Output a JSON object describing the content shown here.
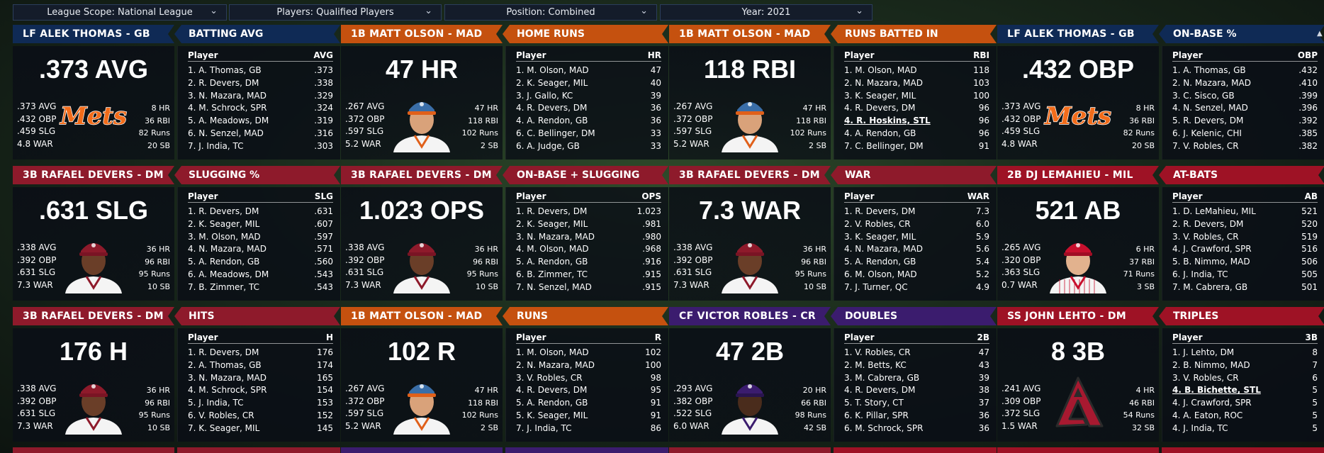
{
  "filters": [
    {
      "label": "League Scope: National League"
    },
    {
      "label": "Players: Qualified Players"
    },
    {
      "label": "Position: Combined"
    },
    {
      "label": "Year: 2021"
    }
  ],
  "panels": [
    {
      "player_title": "LF ALEK THOMAS - GB",
      "player_color": "navy",
      "big_stat": ".373 AVG",
      "left_stats": [
        ".373 AVG",
        ".432 OBP",
        ".459 SLG",
        "4.8 WAR"
      ],
      "right_stats": [
        "8 HR",
        "36 RBI",
        "82 Runs",
        "20 SB"
      ],
      "image": "mets-logo",
      "logo_text": "Mets",
      "leader_title": "BATTING AVG",
      "leader_color": "navy",
      "col_label": "Player",
      "col_stat": "AVG",
      "rows": [
        {
          "name": "1. A. Thomas, GB",
          "value": ".373"
        },
        {
          "name": "2. R. Devers, DM",
          "value": ".338"
        },
        {
          "name": "3. N. Mazara, MAD",
          "value": ".329"
        },
        {
          "name": "4. M. Schrock, SPR",
          "value": ".324"
        },
        {
          "name": "5. A. Meadows, DM",
          "value": ".319"
        },
        {
          "name": "6. N. Senzel, MAD",
          "value": ".316"
        },
        {
          "name": "7. J. India, TC",
          "value": ".303"
        }
      ]
    },
    {
      "player_title": "1B MATT OLSON - MAD",
      "player_color": "orange",
      "big_stat": "47 HR",
      "left_stats": [
        ".267 AVG",
        ".372 OBP",
        ".597 SLG",
        "5.2 WAR"
      ],
      "right_stats": [
        "47 HR",
        "118 RBI",
        "102 Runs",
        "2 SB"
      ],
      "image": "player-orange",
      "leader_title": "HOME RUNS",
      "leader_color": "orange",
      "col_label": "Player",
      "col_stat": "HR",
      "rows": [
        {
          "name": "1. M. Olson, MAD",
          "value": "47"
        },
        {
          "name": "2. K. Seager, MIL",
          "value": "40"
        },
        {
          "name": "3. J. Gallo, KC",
          "value": "39"
        },
        {
          "name": "4. R. Devers, DM",
          "value": "36"
        },
        {
          "name": "4. A. Rendon, GB",
          "value": "36"
        },
        {
          "name": "6. C. Bellinger, DM",
          "value": "33"
        },
        {
          "name": "6. A. Judge, GB",
          "value": "33"
        }
      ]
    },
    {
      "player_title": "1B MATT OLSON - MAD",
      "player_color": "orange",
      "big_stat": "118 RBI",
      "left_stats": [
        ".267 AVG",
        ".372 OBP",
        ".597 SLG",
        "5.2 WAR"
      ],
      "right_stats": [
        "47 HR",
        "118 RBI",
        "102 Runs",
        "2 SB"
      ],
      "image": "player-orange",
      "leader_title": "RUNS BATTED IN",
      "leader_color": "orange",
      "col_label": "Player",
      "col_stat": "RBI",
      "rows": [
        {
          "name": "1. M. Olson, MAD",
          "value": "118"
        },
        {
          "name": "2. N. Mazara, MAD",
          "value": "103"
        },
        {
          "name": "3. K. Seager, MIL",
          "value": "100"
        },
        {
          "name": "4. R. Devers, DM",
          "value": "96"
        },
        {
          "name": "4. R. Hoskins, STL",
          "value": "96",
          "highlight": true
        },
        {
          "name": "4. A. Rendon, GB",
          "value": "96"
        },
        {
          "name": "7. C. Bellinger, DM",
          "value": "91"
        }
      ]
    },
    {
      "player_title": "LF ALEK THOMAS - GB",
      "player_color": "navy",
      "big_stat": ".432 OBP",
      "left_stats": [
        ".373 AVG",
        ".432 OBP",
        ".459 SLG",
        "4.8 WAR"
      ],
      "right_stats": [
        "8 HR",
        "36 RBI",
        "82 Runs",
        "20 SB"
      ],
      "image": "mets-logo",
      "logo_text": "Mets",
      "leader_title": "ON-BASE %",
      "leader_color": "navy",
      "col_label": "Player",
      "col_stat": "OBP",
      "rows": [
        {
          "name": "1. A. Thomas, GB",
          "value": ".432"
        },
        {
          "name": "2. N. Mazara, MAD",
          "value": ".410"
        },
        {
          "name": "3. C. Sisco, GB",
          "value": ".399"
        },
        {
          "name": "4. N. Senzel, MAD",
          "value": ".396"
        },
        {
          "name": "5. R. Devers, DM",
          "value": ".392"
        },
        {
          "name": "6. J. Kelenic, CHI",
          "value": ".385"
        },
        {
          "name": "7. V. Robles, CR",
          "value": ".382"
        }
      ]
    },
    {
      "player_title": "3B RAFAEL DEVERS - DM",
      "player_color": "red",
      "big_stat": ".631 SLG",
      "left_stats": [
        ".338 AVG",
        ".392 OBP",
        ".631 SLG",
        "7.3 WAR"
      ],
      "right_stats": [
        "36 HR",
        "96 RBI",
        "95 Runs",
        "10 SB"
      ],
      "image": "player-red",
      "leader_title": "SLUGGING %",
      "leader_color": "red",
      "col_label": "Player",
      "col_stat": "SLG",
      "rows": [
        {
          "name": "1. R. Devers, DM",
          "value": ".631"
        },
        {
          "name": "2. K. Seager, MIL",
          "value": ".607"
        },
        {
          "name": "3. M. Olson, MAD",
          "value": ".597"
        },
        {
          "name": "4. N. Mazara, MAD",
          "value": ".571"
        },
        {
          "name": "5. A. Rendon, GB",
          "value": ".560"
        },
        {
          "name": "6. A. Meadows, DM",
          "value": ".543"
        },
        {
          "name": "7. B. Zimmer, TC",
          "value": ".543"
        }
      ]
    },
    {
      "player_title": "3B RAFAEL DEVERS - DM",
      "player_color": "red",
      "big_stat": "1.023 OPS",
      "left_stats": [
        ".338 AVG",
        ".392 OBP",
        ".631 SLG",
        "7.3 WAR"
      ],
      "right_stats": [
        "36 HR",
        "96 RBI",
        "95 Runs",
        "10 SB"
      ],
      "image": "player-red",
      "leader_title": "ON-BASE + SLUGGING",
      "leader_color": "red",
      "col_label": "Player",
      "col_stat": "OPS",
      "rows": [
        {
          "name": "1. R. Devers, DM",
          "value": "1.023"
        },
        {
          "name": "2. K. Seager, MIL",
          "value": ".981"
        },
        {
          "name": "3. N. Mazara, MAD",
          "value": ".980"
        },
        {
          "name": "4. M. Olson, MAD",
          "value": ".968"
        },
        {
          "name": "5. A. Rendon, GB",
          "value": ".916"
        },
        {
          "name": "6. B. Zimmer, TC",
          "value": ".915"
        },
        {
          "name": "7. N. Senzel, MAD",
          "value": ".915"
        }
      ]
    },
    {
      "player_title": "3B RAFAEL DEVERS - DM",
      "player_color": "red",
      "big_stat": "7.3 WAR",
      "left_stats": [
        ".338 AVG",
        ".392 OBP",
        ".631 SLG",
        "7.3 WAR"
      ],
      "right_stats": [
        "36 HR",
        "96 RBI",
        "95 Runs",
        "10 SB"
      ],
      "image": "player-red",
      "leader_title": "WAR",
      "leader_color": "red",
      "col_label": "Player",
      "col_stat": "WAR",
      "rows": [
        {
          "name": "1. R. Devers, DM",
          "value": "7.3"
        },
        {
          "name": "2. V. Robles, CR",
          "value": "6.0"
        },
        {
          "name": "3. K. Seager, MIL",
          "value": "5.9"
        },
        {
          "name": "4. N. Mazara, MAD",
          "value": "5.6"
        },
        {
          "name": "5. A. Rendon, GB",
          "value": "5.4"
        },
        {
          "name": "6. M. Olson, MAD",
          "value": "5.2"
        },
        {
          "name": "7. J. Turner, QC",
          "value": "4.9"
        }
      ]
    },
    {
      "player_title": "2B DJ LEMAHIEU - MIL",
      "player_color": "crimson",
      "big_stat": "521 AB",
      "left_stats": [
        ".265 AVG",
        ".320 OBP",
        ".363 SLG",
        "0.7 WAR"
      ],
      "right_stats": [
        "6 HR",
        "37 RBI",
        "71 Runs",
        "3 SB"
      ],
      "image": "player-phillies",
      "leader_title": "AT-BATS",
      "leader_color": "crimson",
      "col_label": "Player",
      "col_stat": "AB",
      "rows": [
        {
          "name": "1. D. LeMahieu, MIL",
          "value": "521"
        },
        {
          "name": "2. R. Devers, DM",
          "value": "520"
        },
        {
          "name": "3. V. Robles, CR",
          "value": "519"
        },
        {
          "name": "4. J. Crawford, SPR",
          "value": "516"
        },
        {
          "name": "5. B. Nimmo, MAD",
          "value": "506"
        },
        {
          "name": "6. J. India, TC",
          "value": "505"
        },
        {
          "name": "7. M. Cabrera, GB",
          "value": "501"
        }
      ]
    },
    {
      "player_title": "3B RAFAEL DEVERS - DM",
      "player_color": "red",
      "big_stat": "176 H",
      "left_stats": [
        ".338 AVG",
        ".392 OBP",
        ".631 SLG",
        "7.3 WAR"
      ],
      "right_stats": [
        "36 HR",
        "96 RBI",
        "95 Runs",
        "10 SB"
      ],
      "image": "player-red",
      "leader_title": "HITS",
      "leader_color": "red",
      "col_label": "Player",
      "col_stat": "H",
      "rows": [
        {
          "name": "1. R. Devers, DM",
          "value": "176"
        },
        {
          "name": "2. A. Thomas, GB",
          "value": "174"
        },
        {
          "name": "3. N. Mazara, MAD",
          "value": "165"
        },
        {
          "name": "4. M. Schrock, SPR",
          "value": "154"
        },
        {
          "name": "5. J. India, TC",
          "value": "153"
        },
        {
          "name": "6. V. Robles, CR",
          "value": "152"
        },
        {
          "name": "7. K. Seager, MIL",
          "value": "145"
        }
      ]
    },
    {
      "player_title": "1B MATT OLSON - MAD",
      "player_color": "orange",
      "big_stat": "102 R",
      "left_stats": [
        ".267 AVG",
        ".372 OBP",
        ".597 SLG",
        "5.2 WAR"
      ],
      "right_stats": [
        "47 HR",
        "118 RBI",
        "102 Runs",
        "2 SB"
      ],
      "image": "player-orange",
      "leader_title": "RUNS",
      "leader_color": "orange",
      "col_label": "Player",
      "col_stat": "R",
      "rows": [
        {
          "name": "1. M. Olson, MAD",
          "value": "102"
        },
        {
          "name": "2. N. Mazara, MAD",
          "value": "100"
        },
        {
          "name": "3. V. Robles, CR",
          "value": "98"
        },
        {
          "name": "4. R. Devers, DM",
          "value": "95"
        },
        {
          "name": "5. A. Rendon, GB",
          "value": "91"
        },
        {
          "name": "5. K. Seager, MIL",
          "value": "91"
        },
        {
          "name": "7. J. India, TC",
          "value": "86"
        }
      ]
    },
    {
      "player_title": "CF VICTOR ROBLES - CR",
      "player_color": "purple",
      "big_stat": "47 2B",
      "left_stats": [
        ".293 AVG",
        ".382 OBP",
        ".522 SLG",
        "6.0 WAR"
      ],
      "right_stats": [
        "20 HR",
        "66 RBI",
        "98 Runs",
        "42 SB"
      ],
      "image": "player-purple",
      "leader_title": "DOUBLES",
      "leader_color": "purple",
      "col_label": "Player",
      "col_stat": "2B",
      "rows": [
        {
          "name": "1. V. Robles, CR",
          "value": "47"
        },
        {
          "name": "2. M. Betts, KC",
          "value": "43"
        },
        {
          "name": "3. M. Cabrera, GB",
          "value": "39"
        },
        {
          "name": "4. R. Devers, DM",
          "value": "38"
        },
        {
          "name": "5. T. Story, CT",
          "value": "37"
        },
        {
          "name": "6. K. Pillar, SPR",
          "value": "36"
        },
        {
          "name": "6. M. Schrock, SPR",
          "value": "36"
        }
      ]
    },
    {
      "player_title": "SS JOHN LEHTO - DM",
      "player_color": "crimson",
      "big_stat": "8 3B",
      "left_stats": [
        ".241 AVG",
        ".309 OBP",
        ".372 SLG",
        "1.5 WAR"
      ],
      "right_stats": [
        "4 HR",
        "46 RBI",
        "54 Runs",
        "32 SB"
      ],
      "image": "dbacks-logo",
      "leader_title": "TRIPLES",
      "leader_color": "crimson",
      "col_label": "Player",
      "col_stat": "3B",
      "rows": [
        {
          "name": "1. J. Lehto, DM",
          "value": "8"
        },
        {
          "name": "2. B. Nimmo, MAD",
          "value": "7"
        },
        {
          "name": "3. V. Robles, CR",
          "value": "6"
        },
        {
          "name": "4. B. Bichette, STL",
          "value": "5",
          "highlight": true
        },
        {
          "name": "4. J. Crawford, SPR",
          "value": "5"
        },
        {
          "name": "4. A. Eaton, ROC",
          "value": "5"
        },
        {
          "name": "4. J. India, TC",
          "value": "5"
        }
      ]
    }
  ],
  "colors": {
    "orange": "#c5510f",
    "red": "#8e1a2b",
    "navy": "#0f2a55",
    "purple": "#3b1c6e",
    "crimson": "#9e1225"
  }
}
